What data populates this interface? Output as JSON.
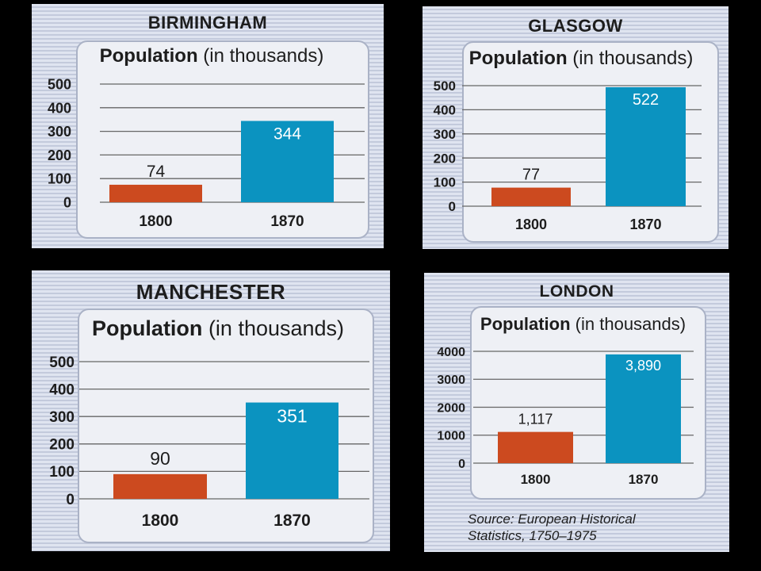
{
  "header_word": "Population",
  "header_unit": "(in thousands)",
  "source_line1": "Source: European Historical",
  "source_line2": "Statistics, 1750–1975",
  "colors": {
    "bar_1800": "#cc4a1f",
    "bar_1870": "#0b93c0",
    "grid": "#666666",
    "text": "#1d1d1d"
  },
  "chart_data": [
    {
      "type": "bar",
      "city": "BIRMINGHAM",
      "title": "Population (in thousands)",
      "categories": [
        "1800",
        "1870"
      ],
      "values": [
        74,
        344
      ],
      "value_labels": [
        "74",
        "344"
      ],
      "ylim": [
        0,
        500
      ],
      "yticks": [
        0,
        100,
        200,
        300,
        400,
        500
      ],
      "ytick_labels": [
        "0",
        "100",
        "200",
        "300",
        "400",
        "500"
      ],
      "grid": true
    },
    {
      "type": "bar",
      "city": "GLASGOW",
      "title": "Population (in thousands)",
      "categories": [
        "1800",
        "1870"
      ],
      "values": [
        77,
        522
      ],
      "value_labels": [
        "77",
        "522"
      ],
      "ylim": [
        0,
        500
      ],
      "yticks": [
        0,
        100,
        200,
        300,
        400,
        500
      ],
      "ytick_labels": [
        "0",
        "100",
        "200",
        "300",
        "400",
        "500"
      ],
      "grid": true
    },
    {
      "type": "bar",
      "city": "MANCHESTER",
      "title": "Population (in thousands)",
      "categories": [
        "1800",
        "1870"
      ],
      "values": [
        90,
        351
      ],
      "value_labels": [
        "90",
        "351"
      ],
      "ylim": [
        0,
        500
      ],
      "yticks": [
        0,
        100,
        200,
        300,
        400,
        500
      ],
      "ytick_labels": [
        "0",
        "100",
        "200",
        "300",
        "400",
        "500"
      ],
      "grid": true
    },
    {
      "type": "bar",
      "city": "LONDON",
      "title": "Population (in thousands)",
      "categories": [
        "1800",
        "1870"
      ],
      "values": [
        1117,
        3890
      ],
      "value_labels": [
        "1,117",
        "3,890"
      ],
      "ylim": [
        0,
        4000
      ],
      "yticks": [
        0,
        1000,
        2000,
        3000,
        4000
      ],
      "ytick_labels": [
        "0",
        "1000",
        "2000",
        "3000",
        "4000"
      ],
      "grid": true
    }
  ]
}
